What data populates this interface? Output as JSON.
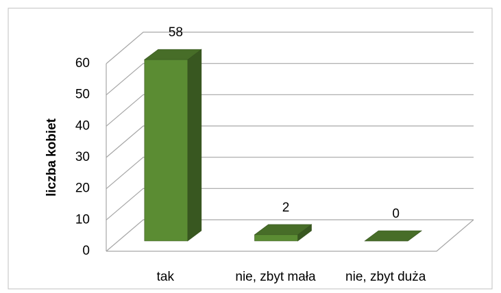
{
  "chart_data": {
    "type": "bar3d",
    "y_label": "liczba kobiet",
    "categories": [
      "tak",
      "nie, zbyt mała",
      "nie, zbyt duża"
    ],
    "values": [
      58,
      2,
      0
    ],
    "color": "#5b8c33",
    "ylim": [
      0,
      60
    ],
    "yticks": [
      0,
      10,
      20,
      30,
      40,
      50,
      60
    ],
    "grid": true
  }
}
